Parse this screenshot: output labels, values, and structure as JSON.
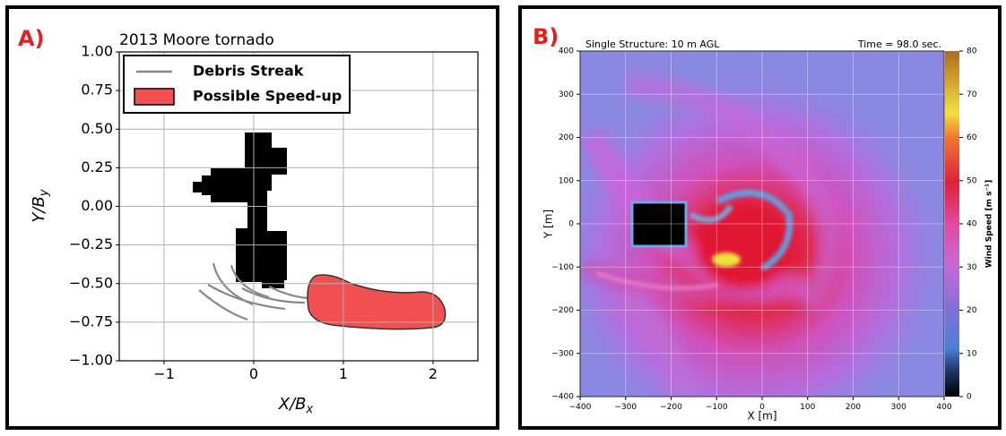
{
  "chart_data": [
    {
      "type": "line",
      "panel_label": "A)",
      "title": "2013 Moore tornado",
      "xlabel": "X/B",
      "xlabel_sub": "x",
      "ylabel": "Y/B",
      "ylabel_sub": "y",
      "legend": [
        {
          "name": "Debris Streak",
          "color": "#888888"
        },
        {
          "name": "Possible Speed-up",
          "color": "#f05050"
        }
      ],
      "xlim": [
        -1.5,
        2.5
      ],
      "ylim": [
        -1,
        1
      ],
      "xticks": [
        {
          "value": -1,
          "label": "−1"
        },
        0,
        1,
        2
      ],
      "yticks": [
        {
          "value": 1,
          "label": "1.00"
        },
        {
          "value": 0.75,
          "label": "0.75"
        },
        {
          "value": 0.5,
          "label": "0.50"
        },
        {
          "value": 0.25,
          "label": "0.25"
        },
        {
          "value": 0,
          "label": "0.00"
        },
        {
          "value": -0.25,
          "label": "−0.25"
        },
        {
          "value": -0.5,
          "label": "−0.50"
        },
        {
          "value": -0.75,
          "label": "−0.75"
        },
        {
          "value": -1,
          "label": "−1.00"
        }
      ],
      "grid": true
    },
    {
      "type": "heatmap",
      "panel_label": "B)",
      "title": "Single Structure: 10 m AGL",
      "subtitle": "Time = 98.0 sec.",
      "xlabel": "X [m]",
      "ylabel": "Y [m]",
      "xlim": [
        -400,
        400
      ],
      "ylim": [
        -400,
        400
      ],
      "xticks": [
        {
          "value": -400,
          "label": "−400"
        },
        {
          "value": -300,
          "label": "−300"
        },
        {
          "value": -200,
          "label": "−200"
        },
        {
          "value": -100,
          "label": "−100"
        },
        0,
        100,
        200,
        300,
        400
      ],
      "yticks": [
        {
          "value": -400,
          "label": "−400"
        },
        {
          "value": -300,
          "label": "−300"
        },
        {
          "value": -200,
          "label": "−200"
        },
        {
          "value": -100,
          "label": "−100"
        },
        0,
        100,
        200,
        300,
        400
      ],
      "grid": true,
      "colorbar": {
        "label": "Wind Speed [m s⁻¹]",
        "lim": [
          0,
          80
        ],
        "ticks": [
          0,
          10,
          20,
          30,
          40,
          50,
          60,
          70,
          80
        ]
      }
    }
  ]
}
